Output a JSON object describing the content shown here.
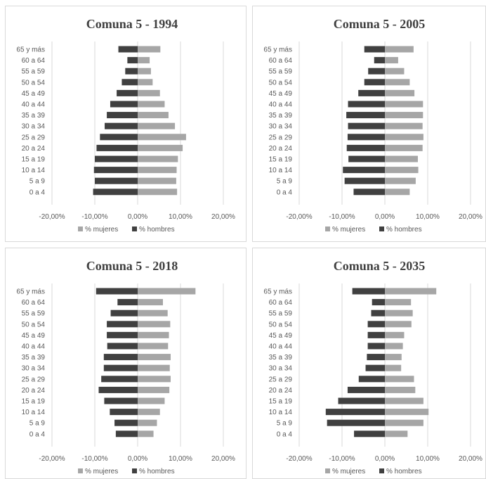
{
  "chart_data": [
    {
      "type": "bar",
      "orientation": "horizontal",
      "title": "Comuna 5 - 1994",
      "categories": [
        "0 a 4",
        "5 a 9",
        "10 a 14",
        "15 a 19",
        "20 a 24",
        "25 a 29",
        "30 a 34",
        "35 a 39",
        "40 a 44",
        "45 a 49",
        "50 a 54",
        "55 a 59",
        "60 a 64",
        "65 y más"
      ],
      "series": [
        {
          "name": "% mujeres",
          "color": "#a6a6a6",
          "values": [
            9.2,
            9.0,
            9.1,
            9.4,
            10.5,
            11.3,
            8.7,
            7.2,
            6.3,
            5.2,
            3.5,
            3.1,
            2.8,
            5.3
          ]
        },
        {
          "name": "% hombres",
          "color": "#404040",
          "values": [
            -10.4,
            -10.0,
            -10.2,
            -10.0,
            -9.6,
            -8.8,
            -7.7,
            -7.2,
            -6.4,
            -4.9,
            -3.7,
            -2.9,
            -2.4,
            -4.5
          ]
        }
      ],
      "xlim": [
        -20,
        20
      ],
      "xticks": [
        "-20,00%",
        "-10,00%",
        "0,00%",
        "10,00%",
        "20,00%"
      ],
      "grid": true,
      "legend": "bottom"
    },
    {
      "type": "bar",
      "orientation": "horizontal",
      "title": "Comuna 5 - 2005",
      "categories": [
        "0 a 4",
        "5 a 9",
        "10 a 14",
        "15 a 19",
        "20 a 24",
        "25 a 29",
        "30 a 34",
        "35 a 39",
        "40 a 44",
        "45 a 49",
        "50 a 54",
        "55 a 59",
        "60 a 64",
        "65 y más"
      ],
      "series": [
        {
          "name": "% mujeres",
          "color": "#a6a6a6",
          "values": [
            5.8,
            7.2,
            7.8,
            7.7,
            8.8,
            9.0,
            8.8,
            8.9,
            8.9,
            6.9,
            5.8,
            4.5,
            3.1,
            6.7
          ]
        },
        {
          "name": "% hombres",
          "color": "#404040",
          "values": [
            -7.3,
            -9.4,
            -9.8,
            -8.5,
            -8.9,
            -8.7,
            -8.6,
            -9.0,
            -8.6,
            -6.2,
            -4.8,
            -3.9,
            -2.5,
            -4.8
          ]
        }
      ],
      "xlim": [
        -20,
        20
      ],
      "xticks": [
        "-20,00%",
        "-10,00%",
        "0,00%",
        "10,00%",
        "20,00%"
      ],
      "grid": true,
      "legend": "bottom"
    },
    {
      "type": "bar",
      "orientation": "horizontal",
      "title": "Comuna 5 - 2018",
      "categories": [
        "0 a 4",
        "5 a 9",
        "10 a 14",
        "15 a 19",
        "20 a 24",
        "25 a 29",
        "30 a 34",
        "35 a 39",
        "40 a 44",
        "45 a 49",
        "50 a 54",
        "55 a 59",
        "60 a 64",
        "65 y más"
      ],
      "series": [
        {
          "name": "% mujeres",
          "color": "#a6a6a6",
          "values": [
            3.7,
            4.5,
            5.2,
            6.3,
            7.4,
            7.7,
            7.5,
            7.7,
            7.1,
            7.3,
            7.6,
            7.0,
            5.9,
            13.5
          ]
        },
        {
          "name": "% hombres",
          "color": "#404040",
          "values": [
            -5.1,
            -5.4,
            -6.5,
            -7.8,
            -9.1,
            -8.5,
            -7.9,
            -7.9,
            -7.1,
            -7.2,
            -7.2,
            -6.3,
            -4.7,
            -9.7
          ]
        }
      ],
      "xlim": [
        -20,
        20
      ],
      "xticks": [
        "-20,00%",
        "-10,00%",
        "0,00%",
        "10,00%",
        "20,00%"
      ],
      "grid": true,
      "legend": "bottom"
    },
    {
      "type": "bar",
      "orientation": "horizontal",
      "title": "Comuna 5 - 2035",
      "categories": [
        "0 a 4",
        "5 a 9",
        "10 a 14",
        "15 a 19",
        "20 a 24",
        "25 a 29",
        "30 a 34",
        "35 a 39",
        "40 a 44",
        "45 a 49",
        "50 a 54",
        "55 a 59",
        "60 a 64",
        "65 y más"
      ],
      "series": [
        {
          "name": "% mujeres",
          "color": "#a6a6a6",
          "values": [
            5.3,
            9.0,
            10.2,
            9.0,
            7.1,
            6.8,
            3.8,
            3.9,
            4.2,
            4.5,
            6.2,
            6.5,
            6.1,
            12.0
          ]
        },
        {
          "name": "% hombres",
          "color": "#404040",
          "values": [
            -7.2,
            -13.5,
            -13.8,
            -10.9,
            -8.7,
            -6.1,
            -4.5,
            -4.2,
            -4.0,
            -4.0,
            -4.0,
            -3.2,
            -3.0,
            -7.6
          ]
        }
      ],
      "xlim": [
        -20,
        20
      ],
      "xticks": [
        "-20,00%",
        "-10,00%",
        "0,00%",
        "10,00%",
        "20,00%"
      ],
      "grid": true,
      "legend": "bottom"
    }
  ]
}
